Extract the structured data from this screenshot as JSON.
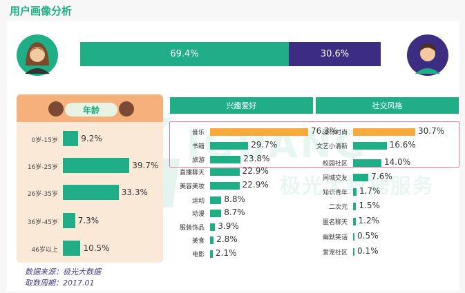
{
  "page": {
    "title": "用户画像分析"
  },
  "colors": {
    "teal": "#1fae86",
    "purple": "#3c2d82",
    "orange": "#f7a93b",
    "peach": "#f5b07c",
    "highlight": "#e07aa6"
  },
  "watermark": {
    "letters": "IGUANG",
    "cn": "极光大数据服务"
  },
  "chart_data": [
    {
      "type": "bar",
      "orientation": "horizontal-stacked",
      "categories": [
        "女",
        "男"
      ],
      "values": [
        69.4,
        30.6
      ],
      "labels": [
        "69.4%",
        "30.6%"
      ],
      "icons": [
        "female-avatar-icon",
        "male-avatar-icon"
      ]
    },
    {
      "type": "bar",
      "orientation": "horizontal",
      "title": "年龄",
      "categories": [
        "0岁-15岁",
        "16岁-25岁",
        "26岁-35岁",
        "36岁-45岁",
        "46岁以上"
      ],
      "values": [
        9.2,
        39.7,
        33.3,
        7.3,
        10.5
      ],
      "labels": [
        "9.2%",
        "39.7%",
        "33.3%",
        "7.3%",
        "10.5%"
      ]
    },
    {
      "type": "bar",
      "orientation": "horizontal",
      "title": "兴趣爱好",
      "categories": [
        "音乐",
        "书籍",
        "旅游",
        "直播聊天",
        "美容美妆",
        "运动",
        "动漫",
        "服装饰品",
        "美食",
        "电影"
      ],
      "values": [
        76.3,
        29.7,
        23.8,
        22.9,
        22.9,
        8.8,
        8.7,
        3.9,
        2.8,
        2.1
      ],
      "labels": [
        "76.3%",
        "29.7%",
        "23.8%",
        "22.9%",
        "22.9%",
        "8.8%",
        "8.7%",
        "3.9%",
        "2.8%",
        "2.1%"
      ],
      "highlighted": [
        true,
        false,
        false,
        false,
        false,
        false,
        false,
        false,
        false,
        false
      ]
    },
    {
      "type": "bar",
      "orientation": "horizontal",
      "title": "社交风格",
      "categories": [
        "流行时尚",
        "文艺小清新",
        "校园社区",
        "同城交友",
        "知识青年",
        "二次元",
        "匿名聊天",
        "幽默笑话",
        "爱宠社区"
      ],
      "values": [
        30.7,
        16.6,
        14.0,
        7.6,
        1.7,
        1.5,
        1.2,
        0.5,
        0.1
      ],
      "labels": [
        "30.7%",
        "16.6%",
        "14.0%",
        "7.6%",
        "1.7%",
        "1.5%",
        "1.2%",
        "0.5%",
        "0.1%"
      ],
      "highlighted": [
        true,
        false,
        false,
        false,
        false,
        false,
        false,
        false,
        false
      ]
    }
  ],
  "source": {
    "line1": "数据来源：极光大数据",
    "line2": "取数周期：2017.01"
  }
}
